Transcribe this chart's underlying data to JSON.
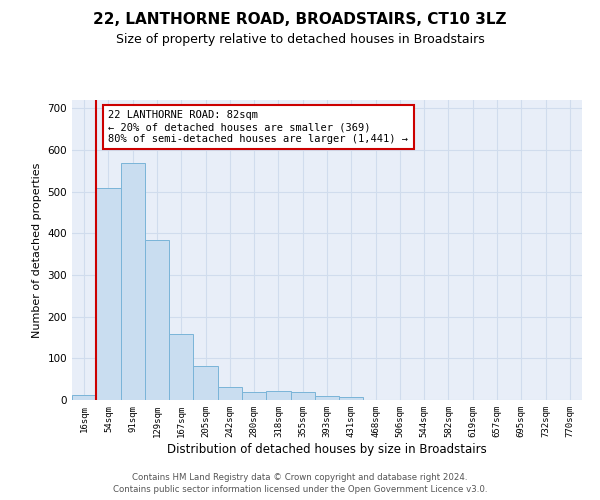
{
  "title": "22, LANTHORNE ROAD, BROADSTAIRS, CT10 3LZ",
  "subtitle": "Size of property relative to detached houses in Broadstairs",
  "xlabel": "Distribution of detached houses by size in Broadstairs",
  "ylabel": "Number of detached properties",
  "bar_labels": [
    "16sqm",
    "54sqm",
    "91sqm",
    "129sqm",
    "167sqm",
    "205sqm",
    "242sqm",
    "280sqm",
    "318sqm",
    "355sqm",
    "393sqm",
    "431sqm",
    "468sqm",
    "506sqm",
    "544sqm",
    "582sqm",
    "619sqm",
    "657sqm",
    "695sqm",
    "732sqm",
    "770sqm"
  ],
  "bar_heights": [
    13,
    510,
    570,
    385,
    158,
    82,
    32,
    20,
    21,
    20,
    10,
    8,
    0,
    0,
    0,
    0,
    0,
    0,
    0,
    0,
    0
  ],
  "bar_color": "#c9ddf0",
  "bar_edge_color": "#7ab4d8",
  "grid_color": "#d0dced",
  "background_color": "#e8eef8",
  "vline_color": "#cc0000",
  "annotation_text": "22 LANTHORNE ROAD: 82sqm\n← 20% of detached houses are smaller (369)\n80% of semi-detached houses are larger (1,441) →",
  "annotation_box_color": "#ffffff",
  "annotation_box_edge": "#cc0000",
  "ylim": [
    0,
    720
  ],
  "yticks": [
    0,
    100,
    200,
    300,
    400,
    500,
    600,
    700
  ],
  "footer1": "Contains HM Land Registry data © Crown copyright and database right 2024.",
  "footer2": "Contains public sector information licensed under the Open Government Licence v3.0."
}
